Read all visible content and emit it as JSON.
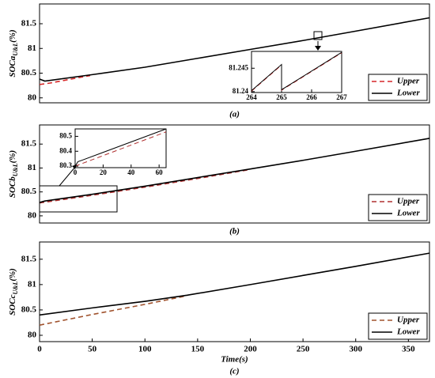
{
  "chart_data": [
    {
      "type": "line",
      "caption": "(a)",
      "ylabel": "SOCa",
      "ylabel_sub": "U&L",
      "ylabel_unit": "(%)",
      "xlim": [
        0,
        370
      ],
      "ylim": [
        79.9,
        81.9
      ],
      "yticks": [
        80,
        80.5,
        81,
        81.5
      ],
      "legend": "lower right",
      "series": [
        {
          "name": "Upper",
          "color": "#d62728",
          "dash": true,
          "x": [
            0,
            10,
            20,
            30,
            40,
            48
          ],
          "values": [
            80.27,
            80.3,
            80.34,
            80.38,
            80.42,
            80.45
          ]
        },
        {
          "name": "Lower",
          "color": "#000000",
          "dash": false,
          "x": [
            0,
            5,
            50,
            100,
            150,
            200,
            250,
            300,
            370
          ],
          "values": [
            80.38,
            80.34,
            80.47,
            80.62,
            80.8,
            80.98,
            81.16,
            81.35,
            81.62
          ]
        }
      ],
      "inset": {
        "xlim": [
          264,
          267
        ],
        "ylim": [
          81.2398,
          81.2486
        ],
        "xticks": [
          264,
          265,
          266,
          267
        ],
        "yticks": [
          81.24,
          81.245
        ],
        "series": [
          {
            "color": "#d62728",
            "dash": true,
            "x": [
              264,
              265,
              265,
              267
            ],
            "values": [
              81.2401,
              81.2457,
              81.2403,
              81.2483
            ]
          },
          {
            "color": "#000000",
            "dash": false,
            "x": [
              264,
              265,
              265,
              267
            ],
            "values": [
              81.2402,
              81.2458,
              81.2404,
              81.2484
            ]
          }
        ]
      }
    },
    {
      "type": "line",
      "caption": "(b)",
      "ylabel": "SOCb",
      "ylabel_sub": "U&L",
      "ylabel_unit": "(%)",
      "xlim": [
        0,
        370
      ],
      "ylim": [
        79.85,
        81.9
      ],
      "yticks": [
        80,
        80.5,
        81,
        81.5
      ],
      "legend": "lower right",
      "series": [
        {
          "name": "Upper",
          "color": "#b03030",
          "dash": true,
          "x": [
            0,
            50,
            100,
            150,
            200
          ],
          "values": [
            80.27,
            80.43,
            80.6,
            80.78,
            80.97
          ]
        },
        {
          "name": "Lower",
          "color": "#000000",
          "dash": false,
          "x": [
            0,
            5,
            50,
            100,
            150,
            200,
            250,
            300,
            370
          ],
          "values": [
            80.28,
            80.31,
            80.45,
            80.62,
            80.8,
            80.98,
            81.16,
            81.35,
            81.62
          ]
        }
      ],
      "inset": {
        "xlim": [
          0,
          65
        ],
        "ylim": [
          80.29,
          80.55
        ],
        "xticks": [
          0,
          20,
          40,
          60
        ],
        "yticks": [
          80.3,
          80.4,
          80.5
        ],
        "series": [
          {
            "color": "#b03030",
            "dash": true,
            "x": [
              0,
              65
            ],
            "values": [
              80.3,
              80.53
            ]
          },
          {
            "color": "#000000",
            "dash": false,
            "x": [
              0,
              2,
              5,
              65
            ],
            "values": [
              80.3,
              80.33,
              80.34,
              80.55
            ]
          }
        ]
      }
    },
    {
      "type": "line",
      "caption": "(c)",
      "ylabel": "SOCc",
      "ylabel_sub": "U&L",
      "ylabel_unit": "(%)",
      "xlabel": "Time(s)",
      "xlim": [
        0,
        370
      ],
      "ylim": [
        79.875,
        81.84
      ],
      "yticks": [
        80,
        80.5,
        81,
        81.5
      ],
      "xticks": [
        0,
        50,
        100,
        150,
        200,
        250,
        300,
        350
      ],
      "legend": "lower right",
      "series": [
        {
          "name": "Upper",
          "color": "#a0522d",
          "dash": true,
          "x": [
            0,
            50,
            100,
            140
          ],
          "values": [
            80.2,
            80.41,
            80.61,
            80.78
          ]
        },
        {
          "name": "Lower",
          "color": "#000000",
          "dash": false,
          "x": [
            0,
            50,
            100,
            140,
            200,
            250,
            300,
            370
          ],
          "values": [
            80.4,
            80.54,
            80.67,
            80.79,
            81.0,
            81.18,
            81.36,
            81.62
          ]
        }
      ]
    }
  ]
}
